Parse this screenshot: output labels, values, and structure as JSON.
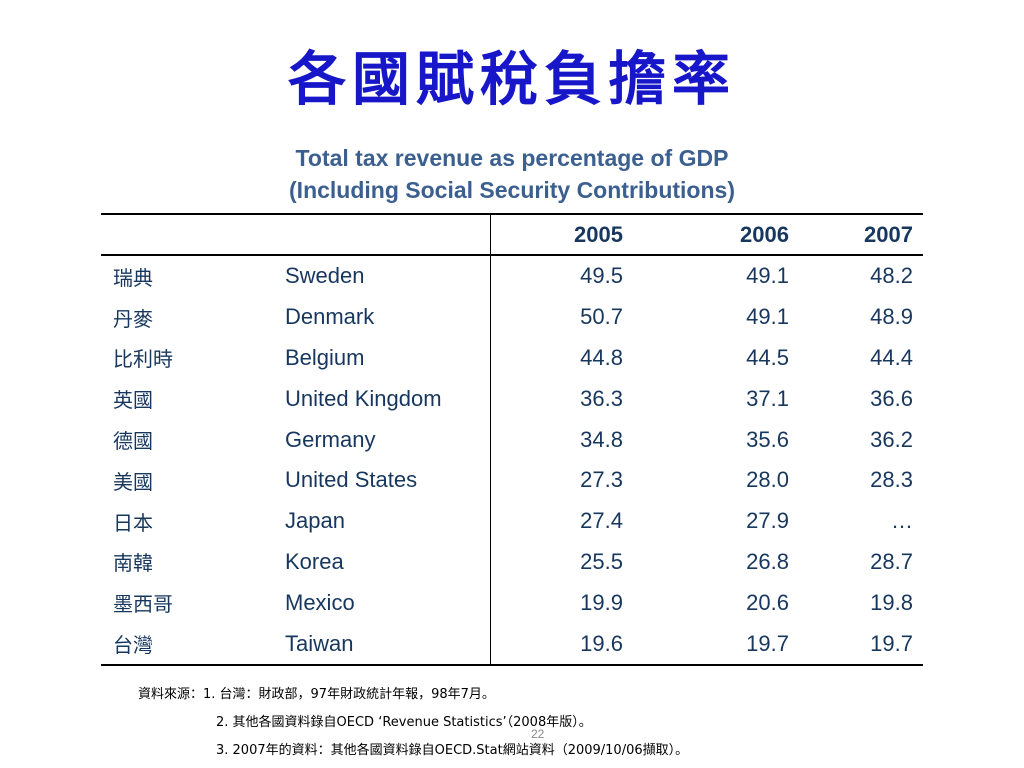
{
  "slide": {
    "title": "各國賦稅負擔率",
    "subtitle_line1": "Total tax revenue as percentage of GDP",
    "subtitle_line2": "(Including Social Security Contributions)",
    "page_number": "22"
  },
  "table": {
    "headers": [
      "",
      "",
      "2005",
      "2006",
      "2007"
    ],
    "rows": [
      {
        "zh": "瑞典",
        "en": "Sweden",
        "v2005": "49.5",
        "v2006": "49.1",
        "v2007": "48.2"
      },
      {
        "zh": "丹麥",
        "en": "Denmark",
        "v2005": "50.7",
        "v2006": "49.1",
        "v2007": "48.9"
      },
      {
        "zh": "比利時",
        "en": "Belgium",
        "v2005": "44.8",
        "v2006": "44.5",
        "v2007": "44.4"
      },
      {
        "zh": "英國",
        "en": "United Kingdom",
        "v2005": "36.3",
        "v2006": "37.1",
        "v2007": "36.6"
      },
      {
        "zh": "德國",
        "en": "Germany",
        "v2005": "34.8",
        "v2006": "35.6",
        "v2007": "36.2"
      },
      {
        "zh": "美國",
        "en": "United States",
        "v2005": "27.3",
        "v2006": "28.0",
        "v2007": "28.3"
      },
      {
        "zh": "日本",
        "en": "Japan",
        "v2005": "27.4",
        "v2006": "27.9",
        "v2007": "…"
      },
      {
        "zh": "南韓",
        "en": "Korea",
        "v2005": "25.5",
        "v2006": "26.8",
        "v2007": "28.7"
      },
      {
        "zh": "墨西哥",
        "en": "Mexico",
        "v2005": "19.9",
        "v2006": "20.6",
        "v2007": "19.8"
      },
      {
        "zh": "台灣",
        "en": "Taiwan",
        "v2005": "19.6",
        "v2006": "19.7",
        "v2007": "19.7"
      }
    ]
  },
  "notes": [
    "資料來源：1. 台灣：財政部，97年財政統計年報，98年7月。",
    "2. 其他各國資料錄自OECD ‘Revenue Statistics’（2008年版）。",
    "3. 2007年的資料：其他各國資料錄自OECD.Stat網站資料（2009/10/06擷取）。"
  ]
}
